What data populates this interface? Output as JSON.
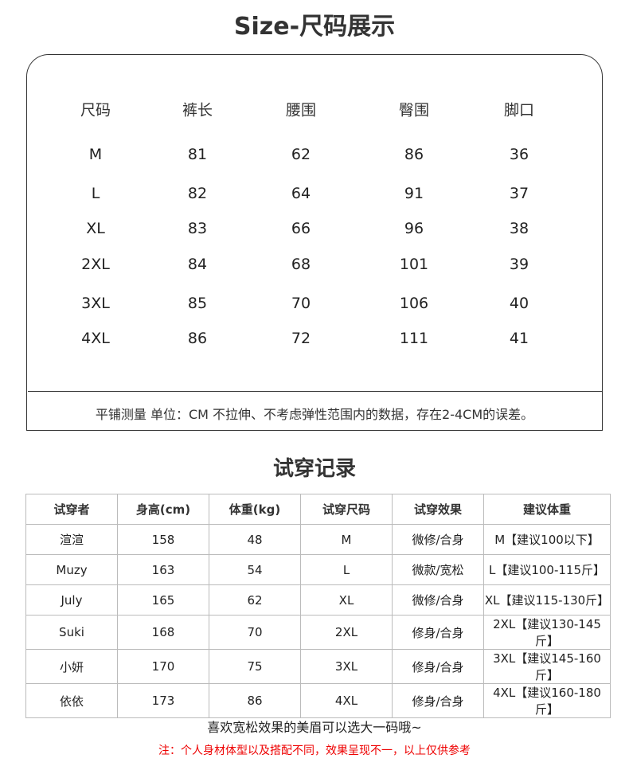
{
  "title": "Size-尺码展示",
  "size_table": {
    "headers": [
      "尺码",
      "裤长",
      "腰围",
      "臀围",
      "脚口"
    ],
    "rows": [
      [
        "M",
        "81",
        "62",
        "86",
        "36"
      ],
      [
        "L",
        "82",
        "64",
        "91",
        "37"
      ],
      [
        "XL",
        "83",
        "66",
        "96",
        "38"
      ],
      [
        "2XL",
        "84",
        "68",
        "101",
        "39"
      ],
      [
        "3XL",
        "85",
        "70",
        "106",
        "40"
      ],
      [
        "4XL",
        "86",
        "72",
        "111",
        "41"
      ]
    ],
    "note": "平铺测量   单位：CM  不拉伸、不考虑弹性范围内的数据，存在2-4CM的误差。"
  },
  "tryon_title": "试穿记录",
  "tryon_table": {
    "headers": [
      "试穿者",
      "身高(cm)",
      "体重(kg)",
      "试穿尺码",
      "试穿效果",
      "建议体重"
    ],
    "rows": [
      [
        "渲渲",
        "158",
        "48",
        "M",
        "微修/合身",
        "M【建议100以下】"
      ],
      [
        "Muzy",
        "163",
        "54",
        "L",
        "微款/宽松",
        "L【建议100-115斤】"
      ],
      [
        "July",
        "165",
        "62",
        "XL",
        "微修/合身",
        "XL【建议115-130斤】"
      ],
      [
        "Suki",
        "168",
        "70",
        "2XL",
        "修身/合身",
        "2XL【建议130-145斤】"
      ],
      [
        "小妍",
        "170",
        "75",
        "3XL",
        "修身/合身",
        "3XL【建议145-160斤】"
      ],
      [
        "依依",
        "173",
        "86",
        "4XL",
        "修身/合身",
        "4XL【建议160-180斤】"
      ]
    ]
  },
  "tip": "喜欢宽松效果的美眉可以选大一码哦~",
  "disclaimer": "注：个人身材体型以及搭配不同，效果呈现不一，以上仅供参考",
  "colors": {
    "disclaimer": "#e00000"
  }
}
